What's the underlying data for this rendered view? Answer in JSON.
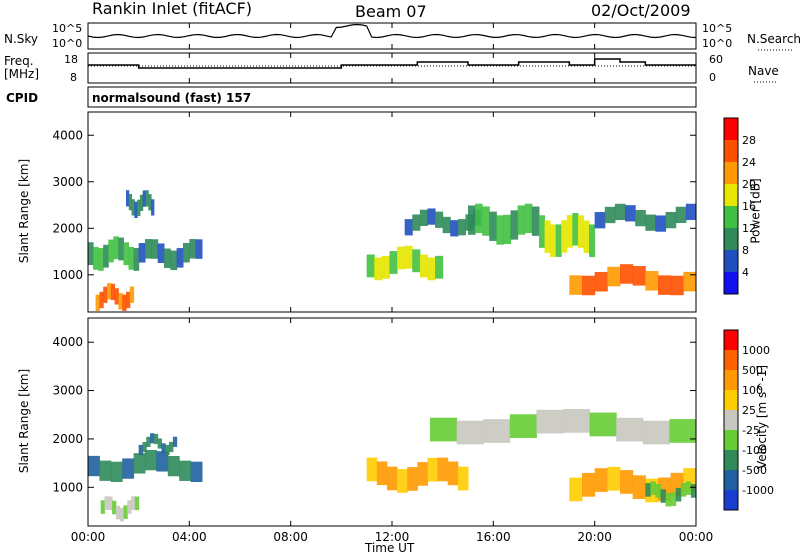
{
  "header": {
    "station": "Rankin Inlet (fitACF)",
    "beam": "Beam 07",
    "date": "02/Oct/2009"
  },
  "panels": {
    "noise": {
      "left_label": "N.Sky",
      "right_label": "N.Search",
      "left_ticks": [
        "10^5",
        "10^0"
      ],
      "right_ticks": [
        "10^5",
        "10^0"
      ]
    },
    "freq": {
      "left_label_1": "Freq.",
      "left_label_2": "[MHz]",
      "right_label": "Nave",
      "left_ticks": [
        "18",
        "8"
      ],
      "right_ticks": [
        "60",
        "0"
      ]
    },
    "cpid": {
      "label": "CPID",
      "value": "normalsound (fast) 157"
    }
  },
  "chart_data": [
    {
      "type": "heatmap",
      "name": "power",
      "ylabel": "Slant Range [km]",
      "ylim": [
        200,
        4500
      ],
      "yticks": [
        "1000",
        "2000",
        "3000",
        "4000"
      ],
      "xlim": [
        "00:00",
        "24:00"
      ],
      "colorbar": {
        "label": "Power [dB]",
        "ticks": [
          "4",
          "8",
          "12",
          "16",
          "20",
          "24",
          "28"
        ],
        "colors": [
          "#1010f0",
          "#2050c0",
          "#2f8a5a",
          "#40c040",
          "#e6e600",
          "#ff9900",
          "#ff5000",
          "#ff0000"
        ]
      },
      "bands": [
        {
          "t0": 0.0,
          "t1": 2.0,
          "r_lo": 1000,
          "r_hi": 1700,
          "lvl": 3
        },
        {
          "t0": 0.3,
          "t1": 1.8,
          "r_lo": 200,
          "r_hi": 700,
          "lvl": 6
        },
        {
          "t0": 2.0,
          "t1": 4.5,
          "r_lo": 1050,
          "r_hi": 1650,
          "lvl": 2
        },
        {
          "t0": 1.5,
          "t1": 2.6,
          "r_lo": 2200,
          "r_hi": 2700,
          "lvl": 2
        },
        {
          "t0": 11.0,
          "t1": 14.0,
          "r_lo": 800,
          "r_hi": 1500,
          "lvl": 4
        },
        {
          "t0": 12.5,
          "t1": 15.5,
          "r_lo": 1800,
          "r_hi": 2300,
          "lvl": 2
        },
        {
          "t0": 15.0,
          "t1": 17.8,
          "r_lo": 1500,
          "r_hi": 2400,
          "lvl": 3
        },
        {
          "t0": 17.8,
          "t1": 20.0,
          "r_lo": 1200,
          "r_hi": 2200,
          "lvl": 4
        },
        {
          "t0": 19.0,
          "t1": 24.0,
          "r_lo": 500,
          "r_hi": 1100,
          "lvl": 6
        },
        {
          "t0": 20.0,
          "t1": 24.0,
          "r_lo": 1900,
          "r_hi": 2400,
          "lvl": 2
        }
      ]
    },
    {
      "type": "heatmap",
      "name": "velocity",
      "ylabel": "Slant Range [km]",
      "ylim": [
        200,
        4500
      ],
      "yticks": [
        "1000",
        "2000",
        "3000",
        "4000"
      ],
      "xlabel": "Time UT",
      "xticks": [
        "00:00",
        "04:00",
        "08:00",
        "12:00",
        "16:00",
        "20:00",
        "00:00"
      ],
      "xlim": [
        "00:00",
        "24:00"
      ],
      "colorbar": {
        "label": "Velocity [m s^-1]",
        "ticks": [
          "1000",
          "500",
          "100",
          "25",
          "-25",
          "-100",
          "-500",
          "-1000"
        ],
        "colors": [
          "#1a3fd0",
          "#2060a0",
          "#2f8a5a",
          "#66cc33",
          "#c8c8c0",
          "#ffcc00",
          "#ff9900",
          "#ff6000",
          "#ff0000"
        ]
      },
      "bands": [
        {
          "t0": 0.0,
          "t1": 4.5,
          "r_lo": 1050,
          "r_hi": 1650,
          "lvl": 2
        },
        {
          "t0": 2.0,
          "t1": 3.5,
          "r_lo": 1700,
          "r_hi": 2000,
          "lvl": 2
        },
        {
          "t0": 0.5,
          "t1": 2.0,
          "r_lo": 300,
          "r_hi": 700,
          "lvl": 4
        },
        {
          "t0": 11.0,
          "t1": 15.0,
          "r_lo": 800,
          "r_hi": 1500,
          "lvl": 6
        },
        {
          "t0": 13.5,
          "t1": 24.0,
          "r_lo": 1800,
          "r_hi": 2500,
          "lvl": 4
        },
        {
          "t0": 19.0,
          "t1": 24.0,
          "r_lo": 600,
          "r_hi": 1300,
          "lvl": 6
        },
        {
          "t0": 22.0,
          "t1": 24.0,
          "r_lo": 600,
          "r_hi": 1000,
          "lvl": 3
        }
      ]
    }
  ],
  "freq_trace": [
    14,
    14,
    13,
    13,
    13,
    13,
    13,
    13,
    13,
    13,
    14,
    14,
    14,
    15,
    15,
    14,
    14,
    15,
    15,
    14,
    16,
    15,
    14,
    14
  ]
}
